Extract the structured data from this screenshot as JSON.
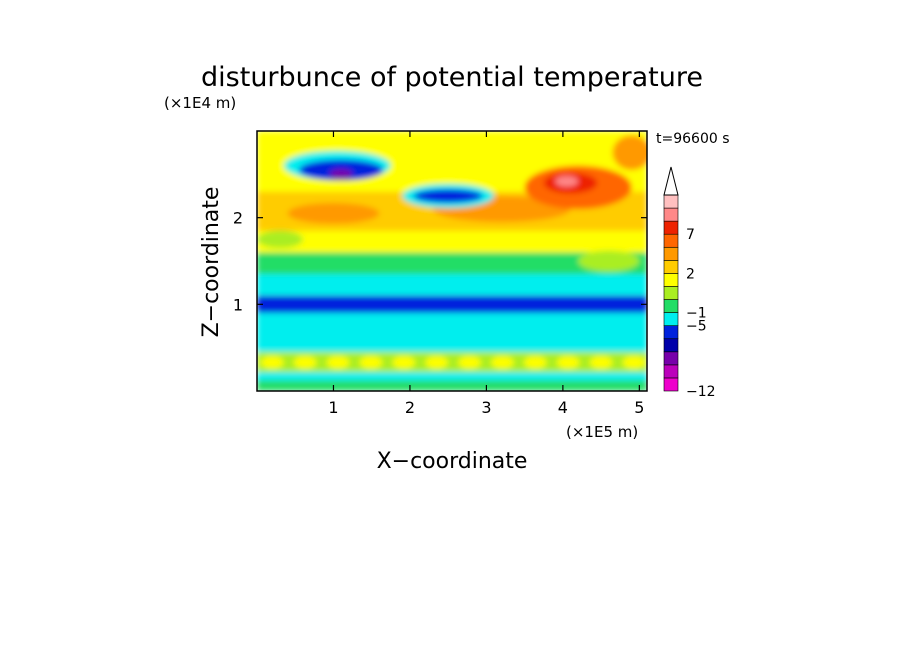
{
  "chart_data": {
    "type": "heatmap",
    "title": "disturbunce of potential temperature",
    "time_label": "t=96600 s",
    "xlabel": "X−coordinate",
    "ylabel": "Z−coordinate",
    "x_unit": "(×1E5 m)",
    "y_unit": "(×1E4 m)",
    "xlim": [
      0,
      5.1
    ],
    "ylim": [
      0,
      3.0
    ],
    "xticks": [
      "1",
      "2",
      "3",
      "4",
      "5"
    ],
    "yticks": [
      "1",
      "2"
    ],
    "colorbar": {
      "labels": [
        "−12",
        "−5",
        "−1",
        "2",
        "7"
      ],
      "colors": [
        "#ee00cc",
        "#bb00bb",
        "#7700aa",
        "#0000aa",
        "#0022dd",
        "#00eeee",
        "#22dd66",
        "#aaee22",
        "#ffff00",
        "#ffcc00",
        "#ff9900",
        "#ff6600",
        "#ee2200",
        "#ff8888",
        "#ffc0c0"
      ],
      "extend": "max"
    },
    "field_description_bands": [
      {
        "z": [
          0.0,
          0.1
        ],
        "category": "light blue / green"
      },
      {
        "z": [
          0.2,
          0.45
        ],
        "category": "yellow-green patches"
      },
      {
        "z": [
          0.5,
          0.9
        ],
        "category": "cyan"
      },
      {
        "z": [
          0.9,
          1.1
        ],
        "category": "blue (negative)"
      },
      {
        "z": [
          1.1,
          1.6
        ],
        "category": "green / yellow"
      },
      {
        "z": [
          1.6,
          2.4
        ],
        "category": "orange / red (positive)"
      },
      {
        "z": [
          2.2,
          2.7
        ],
        "category": "blue minima near x=1.1 and x=2.5"
      },
      {
        "z": [
          2.3,
          2.5
        ],
        "category": "red maximum near x=4.1"
      }
    ]
  }
}
